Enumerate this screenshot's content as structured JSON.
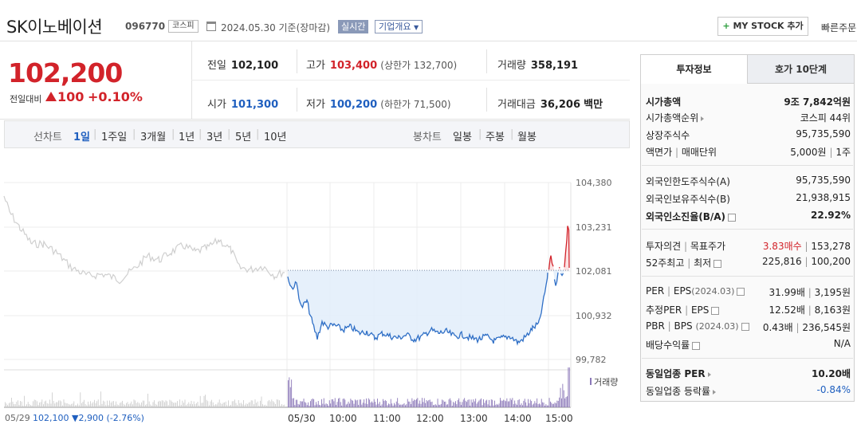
{
  "header": {
    "name": "SK이노베이션",
    "code": "096770",
    "market": "코스피",
    "date": "2024.05.30 기준(장마감)",
    "realtime": "실시간",
    "company_overview": "기업개요",
    "mystock": "MY STOCK 추가",
    "quick_order": "빠른주문"
  },
  "price": {
    "current": "102,200",
    "change_label": "전일대비",
    "change_amount": "100",
    "change_pct": "+0.10%"
  },
  "stats": {
    "prev_label": "전일",
    "prev": "102,100",
    "open_label": "시가",
    "open": "101,300",
    "high_label": "고가",
    "high": "103,400",
    "upper_limit": "(상한가 132,700)",
    "low_label": "저가",
    "low": "100,200",
    "lower_limit": "(하한가 71,500)",
    "volume_label": "거래량",
    "volume": "358,191",
    "amount_label": "거래대금",
    "amount": "36,206",
    "amount_unit": "백만"
  },
  "periods": {
    "line_label": "선차트",
    "items": [
      "1일",
      "1주일",
      "3개월",
      "1년",
      "3년",
      "5년",
      "10년"
    ],
    "candle_label": "봉차트",
    "candles": [
      "일봉",
      "주봉",
      "월봉"
    ]
  },
  "chart_data": {
    "type": "line",
    "y_ticks": [
      "104,380",
      "103,231",
      "102,081",
      "100,932",
      "99,782"
    ],
    "y_range": [
      99782,
      104380
    ],
    "x_ticks": [
      "05/30",
      "10:00",
      "11:00",
      "12:00",
      "13:00",
      "14:00",
      "15:00"
    ],
    "prev_close": 102100,
    "volume_label": "거래량",
    "prev_day_label": "05/29",
    "prev_day_close": "102,100",
    "prev_day_change": "▼2,900",
    "prev_day_pct": "(-2.76%)"
  },
  "info": {
    "tab_active": "투자정보",
    "tab_inactive": "호가 10단계",
    "market_cap_label": "시가총액",
    "market_cap": "9조 7,842억원",
    "rank_label": "시가총액순위",
    "rank": "코스피 44위",
    "shares_label": "상장주식수",
    "shares": "95,735,590",
    "par_label": "액면가",
    "unit_label": "매매단위",
    "par": "5,000원",
    "unit": "1주",
    "foreign_limit_label": "외국인한도주식수(A)",
    "foreign_limit": "95,735,590",
    "foreign_hold_label": "외국인보유주식수(B)",
    "foreign_hold": "21,938,915",
    "foreign_ratio_label": "외국인소진율(B/A)",
    "foreign_ratio": "22.92%",
    "opinion_label": "투자의견",
    "target_label": "목표주가",
    "opinion": "3.83매수",
    "target": "153,278",
    "w52_high_label": "52주최고",
    "w52_low_label": "최저",
    "w52_high": "225,816",
    "w52_low": "100,200",
    "per_label": "PER",
    "eps_label": "EPS",
    "eps_date": "(2024.03)",
    "per": "31.99배",
    "eps": "3,195원",
    "est_per_label": "추정PER",
    "est_eps_label": "EPS",
    "est_per": "12.52배",
    "est_eps": "8,163원",
    "pbr_label": "PBR",
    "bps_label": "BPS",
    "bps_date": "(2024.03)",
    "pbr": "0.43배",
    "bps": "236,545원",
    "div_label": "배당수익률",
    "div": "N/A",
    "ind_per_label": "동일업종 PER",
    "ind_per": "10.20배",
    "ind_chg_label": "동일업종 등락률",
    "ind_chg": "-0.84%"
  }
}
